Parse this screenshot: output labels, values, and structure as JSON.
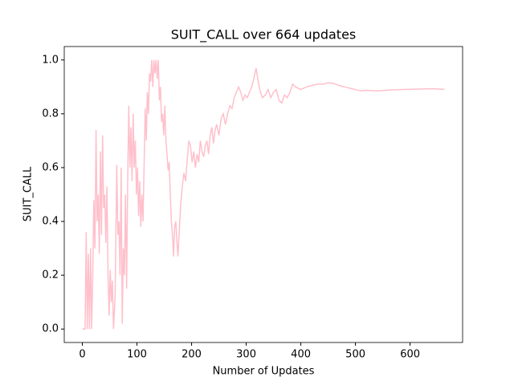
{
  "chart_data": {
    "type": "line",
    "title": "SUIT_CALL over 664 updates",
    "xlabel": "Number of Updates",
    "ylabel": "SUIT_CALL",
    "color": "#ffc0cb",
    "x": [
      0,
      5,
      7,
      9,
      11,
      13,
      15,
      17,
      19,
      21,
      23,
      25,
      27,
      29,
      31,
      33,
      35,
      37,
      39,
      41,
      43,
      45,
      47,
      49,
      51,
      53,
      55,
      57,
      60,
      63,
      65,
      67,
      69,
      71,
      73,
      75,
      77,
      79,
      81,
      83,
      85,
      87,
      89,
      91,
      93,
      95,
      97,
      99,
      101,
      103,
      105,
      107,
      109,
      111,
      113,
      115,
      117,
      119,
      121,
      123,
      125,
      127,
      129,
      131,
      133,
      135,
      137,
      139,
      141,
      143,
      145,
      147,
      149,
      151,
      153,
      155,
      157,
      159,
      161,
      163,
      165,
      167,
      169,
      171,
      173,
      175,
      177,
      180,
      183,
      186,
      189,
      192,
      195,
      198,
      201,
      204,
      207,
      210,
      213,
      216,
      219,
      222,
      225,
      228,
      231,
      234,
      237,
      240,
      243,
      246,
      250,
      254,
      258,
      262,
      266,
      270,
      274,
      278,
      282,
      286,
      290,
      294,
      298,
      302,
      306,
      310,
      314,
      318,
      322,
      326,
      330,
      335,
      340,
      345,
      350,
      355,
      360,
      365,
      370,
      375,
      380,
      385,
      390,
      400,
      410,
      420,
      430,
      440,
      450,
      460,
      470,
      480,
      490,
      500,
      510,
      520,
      540,
      560,
      580,
      600,
      620,
      640,
      663
    ],
    "values": [
      0,
      0,
      0.36,
      0,
      0.28,
      0,
      0.3,
      0,
      0.2,
      0.48,
      0.3,
      0.74,
      0.4,
      0.5,
      0.28,
      0.66,
      0.35,
      0.72,
      0.45,
      0.5,
      0.32,
      0.53,
      0.2,
      0.05,
      0.22,
      0.1,
      0.18,
      0,
      0.12,
      0.61,
      0.35,
      0.4,
      0.2,
      0.6,
      0.02,
      0.3,
      0.2,
      0.5,
      0.15,
      0.55,
      0.83,
      0.6,
      0.75,
      0.55,
      0.8,
      0.6,
      0.7,
      0.5,
      0.6,
      0.42,
      0.55,
      0.38,
      0.5,
      0.4,
      0.6,
      0.82,
      0.7,
      0.88,
      0.8,
      0.95,
      0.92,
      1.0,
      0.9,
      1.0,
      0.95,
      1.0,
      0.93,
      1.0,
      0.85,
      0.9,
      0.77,
      0.8,
      0.72,
      0.83,
      0.7,
      0.65,
      0.59,
      0.62,
      0.5,
      0.4,
      0.35,
      0.27,
      0.38,
      0.4,
      0.33,
      0.27,
      0.35,
      0.46,
      0.53,
      0.58,
      0.55,
      0.63,
      0.7,
      0.68,
      0.62,
      0.66,
      0.6,
      0.65,
      0.62,
      0.7,
      0.66,
      0.64,
      0.68,
      0.7,
      0.65,
      0.72,
      0.75,
      0.69,
      0.74,
      0.76,
      0.72,
      0.78,
      0.8,
      0.76,
      0.8,
      0.83,
      0.82,
      0.86,
      0.88,
      0.9,
      0.88,
      0.85,
      0.87,
      0.86,
      0.88,
      0.9,
      0.93,
      0.97,
      0.92,
      0.88,
      0.86,
      0.87,
      0.89,
      0.86,
      0.88,
      0.89,
      0.85,
      0.84,
      0.87,
      0.86,
      0.88,
      0.91,
      0.9,
      0.89,
      0.9,
      0.905,
      0.91,
      0.91,
      0.915,
      0.913,
      0.905,
      0.9,
      0.895,
      0.89,
      0.885,
      0.887,
      0.885,
      0.888,
      0.89,
      0.891,
      0.892,
      0.893,
      0.891
    ],
    "xlim": [
      -33.15,
      696.15
    ],
    "ylim": [
      -0.05,
      1.05
    ],
    "xticks": [
      0,
      100,
      200,
      300,
      400,
      500,
      600
    ],
    "yticks": [
      {
        "value": 0,
        "label": "0.0"
      },
      {
        "value": 0.2,
        "label": "0.2"
      },
      {
        "value": 0.4,
        "label": "0.4"
      },
      {
        "value": 0.6,
        "label": "0.6"
      },
      {
        "value": 0.8,
        "label": "0.8"
      },
      {
        "value": 1.0,
        "label": "1.0"
      }
    ]
  }
}
